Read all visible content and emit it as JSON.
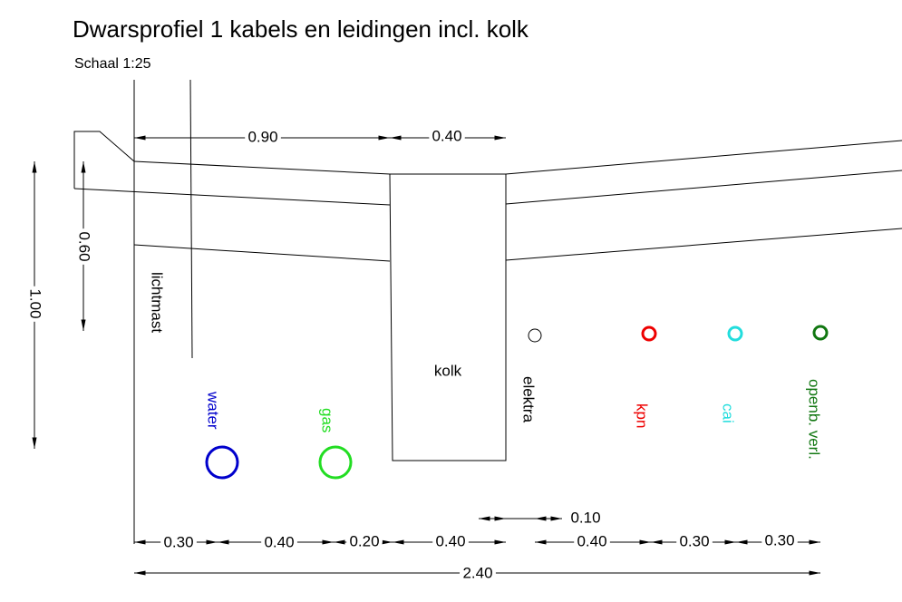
{
  "header": {
    "title": "Dwarsprofiel 1 kabels en leidingen incl. kolk",
    "subtitle": "Schaal 1:25"
  },
  "labels": {
    "lichtmast": "lichtmast",
    "kolk": "kolk"
  },
  "utilities": [
    {
      "label": "water"
    },
    {
      "label": "gas"
    },
    {
      "label": "elektra"
    },
    {
      "label": "kpn"
    },
    {
      "label": "cai"
    },
    {
      "label": "openb. verl."
    }
  ],
  "dimensions": {
    "top": [
      "0.90",
      "0.40"
    ],
    "vertical": [
      "1.00",
      "0.60"
    ],
    "bottom": [
      "0.30",
      "0.40",
      "0.20",
      "0.40",
      "0.40",
      "0.30",
      "0.30"
    ],
    "offset": "0.10",
    "total": "2.40"
  }
}
